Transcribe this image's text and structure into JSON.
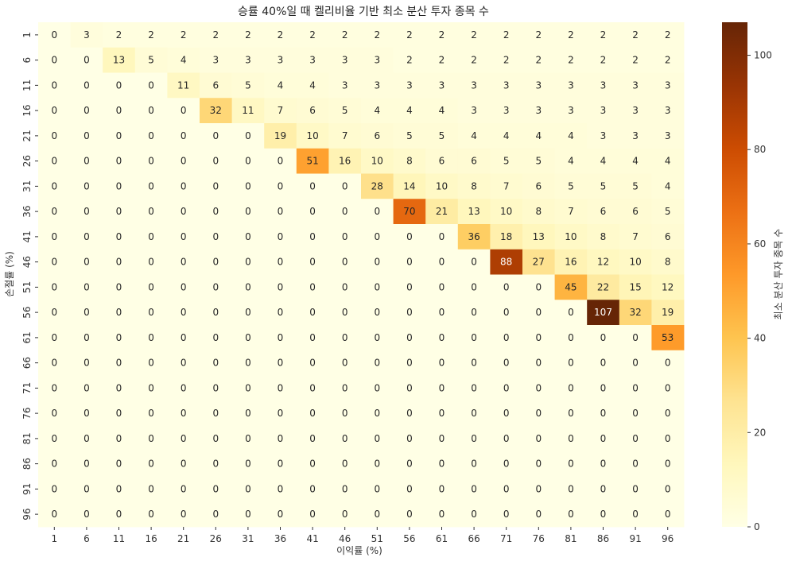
{
  "chart_data": {
    "type": "heatmap",
    "title": "승률 40%일 때 켈리비율 기반 최소 분산 투자 종목 수",
    "xlabel": "이익률 (%)",
    "ylabel": "손절률 (%)",
    "x_categories": [
      "1",
      "6",
      "11",
      "16",
      "21",
      "26",
      "31",
      "36",
      "41",
      "46",
      "51",
      "56",
      "61",
      "66",
      "71",
      "76",
      "81",
      "86",
      "91",
      "96"
    ],
    "y_categories": [
      "1",
      "6",
      "11",
      "16",
      "21",
      "26",
      "31",
      "36",
      "41",
      "46",
      "51",
      "56",
      "61",
      "66",
      "71",
      "76",
      "81",
      "86",
      "91",
      "96"
    ],
    "values": [
      [
        0,
        3,
        2,
        2,
        2,
        2,
        2,
        2,
        2,
        2,
        2,
        2,
        2,
        2,
        2,
        2,
        2,
        2,
        2,
        2
      ],
      [
        0,
        0,
        13,
        5,
        4,
        3,
        3,
        3,
        3,
        3,
        3,
        2,
        2,
        2,
        2,
        2,
        2,
        2,
        2,
        2
      ],
      [
        0,
        0,
        0,
        0,
        11,
        6,
        5,
        4,
        4,
        3,
        3,
        3,
        3,
        3,
        3,
        3,
        3,
        3,
        3,
        3
      ],
      [
        0,
        0,
        0,
        0,
        0,
        32,
        11,
        7,
        6,
        5,
        4,
        4,
        4,
        3,
        3,
        3,
        3,
        3,
        3,
        3
      ],
      [
        0,
        0,
        0,
        0,
        0,
        0,
        0,
        19,
        10,
        7,
        6,
        5,
        5,
        4,
        4,
        4,
        4,
        3,
        3,
        3
      ],
      [
        0,
        0,
        0,
        0,
        0,
        0,
        0,
        0,
        51,
        16,
        10,
        8,
        6,
        6,
        5,
        5,
        4,
        4,
        4,
        4
      ],
      [
        0,
        0,
        0,
        0,
        0,
        0,
        0,
        0,
        0,
        0,
        28,
        14,
        10,
        8,
        7,
        6,
        5,
        5,
        5,
        4
      ],
      [
        0,
        0,
        0,
        0,
        0,
        0,
        0,
        0,
        0,
        0,
        0,
        70,
        21,
        13,
        10,
        8,
        7,
        6,
        6,
        5
      ],
      [
        0,
        0,
        0,
        0,
        0,
        0,
        0,
        0,
        0,
        0,
        0,
        0,
        0,
        36,
        18,
        13,
        10,
        8,
        7,
        6
      ],
      [
        0,
        0,
        0,
        0,
        0,
        0,
        0,
        0,
        0,
        0,
        0,
        0,
        0,
        0,
        88,
        27,
        16,
        12,
        10,
        8
      ],
      [
        0,
        0,
        0,
        0,
        0,
        0,
        0,
        0,
        0,
        0,
        0,
        0,
        0,
        0,
        0,
        0,
        45,
        22,
        15,
        12
      ],
      [
        0,
        0,
        0,
        0,
        0,
        0,
        0,
        0,
        0,
        0,
        0,
        0,
        0,
        0,
        0,
        0,
        0,
        107,
        32,
        19
      ],
      [
        0,
        0,
        0,
        0,
        0,
        0,
        0,
        0,
        0,
        0,
        0,
        0,
        0,
        0,
        0,
        0,
        0,
        0,
        0,
        53
      ],
      [
        0,
        0,
        0,
        0,
        0,
        0,
        0,
        0,
        0,
        0,
        0,
        0,
        0,
        0,
        0,
        0,
        0,
        0,
        0,
        0
      ],
      [
        0,
        0,
        0,
        0,
        0,
        0,
        0,
        0,
        0,
        0,
        0,
        0,
        0,
        0,
        0,
        0,
        0,
        0,
        0,
        0
      ],
      [
        0,
        0,
        0,
        0,
        0,
        0,
        0,
        0,
        0,
        0,
        0,
        0,
        0,
        0,
        0,
        0,
        0,
        0,
        0,
        0
      ],
      [
        0,
        0,
        0,
        0,
        0,
        0,
        0,
        0,
        0,
        0,
        0,
        0,
        0,
        0,
        0,
        0,
        0,
        0,
        0,
        0
      ],
      [
        0,
        0,
        0,
        0,
        0,
        0,
        0,
        0,
        0,
        0,
        0,
        0,
        0,
        0,
        0,
        0,
        0,
        0,
        0,
        0
      ],
      [
        0,
        0,
        0,
        0,
        0,
        0,
        0,
        0,
        0,
        0,
        0,
        0,
        0,
        0,
        0,
        0,
        0,
        0,
        0,
        0
      ],
      [
        0,
        0,
        0,
        0,
        0,
        0,
        0,
        0,
        0,
        0,
        0,
        0,
        0,
        0,
        0,
        0,
        0,
        0,
        0,
        0
      ]
    ],
    "colormap": "YlOrBr",
    "colorbar": {
      "label": "최소 분산 투자 종목 수",
      "range": [
        0,
        107
      ],
      "ticks": [
        0,
        20,
        40,
        60,
        80,
        100
      ]
    },
    "annotations": true
  }
}
